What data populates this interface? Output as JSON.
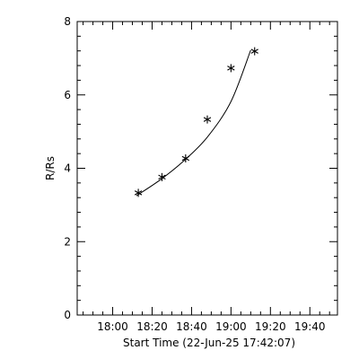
{
  "chart_data": {
    "type": "scatter",
    "xlabel": "Start Time (22-Jun-25 17:42:07)",
    "ylabel": "R/Rs",
    "xlim": [
      "17:42",
      "19:54"
    ],
    "ylim": [
      0,
      8
    ],
    "x_ticks": [
      "18:00",
      "18:20",
      "18:40",
      "19:00",
      "19:20",
      "19:40"
    ],
    "y_ticks": [
      0,
      2,
      4,
      6,
      8
    ],
    "grid": false,
    "points": [
      {
        "x": "18:13",
        "y": 3.33
      },
      {
        "x": "18:25",
        "y": 3.76
      },
      {
        "x": "18:37",
        "y": 4.27
      },
      {
        "x": "18:48",
        "y": 5.33
      },
      {
        "x": "19:00",
        "y": 6.73
      },
      {
        "x": "19:12",
        "y": 7.19
      }
    ],
    "fit": [
      {
        "x": "18:12",
        "y": 3.25
      },
      {
        "x": "18:24",
        "y": 3.68
      },
      {
        "x": "18:36",
        "y": 4.2
      },
      {
        "x": "18:48",
        "y": 4.85
      },
      {
        "x": "19:00",
        "y": 5.82
      },
      {
        "x": "19:10",
        "y": 7.22
      }
    ],
    "point_marker": "asterisk",
    "colors": {
      "axes": "#000000",
      "series": "#000000",
      "background": "#ffffff"
    }
  }
}
